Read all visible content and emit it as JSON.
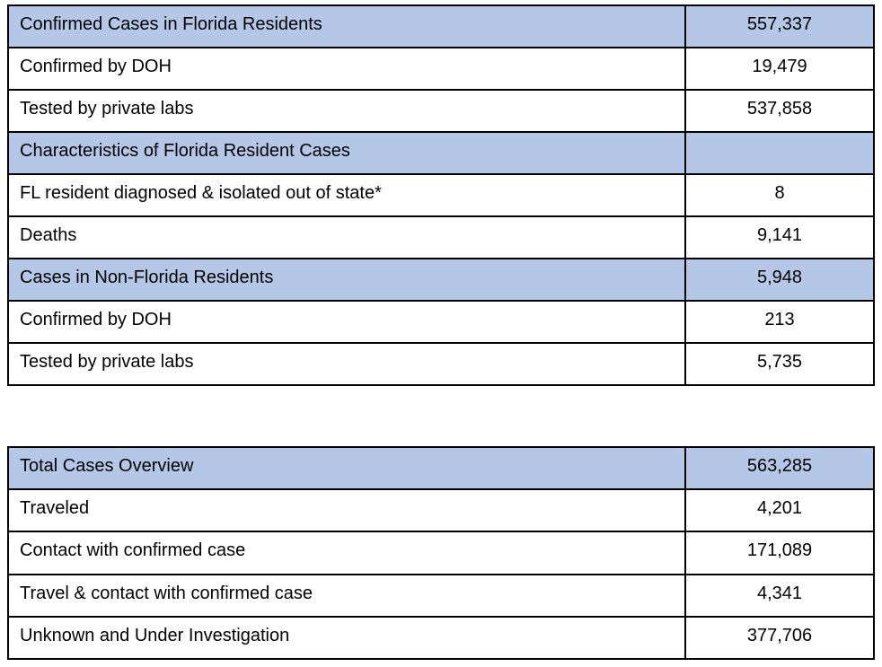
{
  "page": {
    "background_color": "#ffffff",
    "text_color": "#000000",
    "border_color": "#000000",
    "header_fill_color": "#b4c7e7"
  },
  "tables": [
    {
      "name": "florida-resident-cases-summary",
      "rows": [
        {
          "label": "Confirmed Cases in Florida Residents",
          "value": "557,337",
          "header": true
        },
        {
          "label": "Confirmed by DOH",
          "value": "19,479",
          "header": false
        },
        {
          "label": "Tested by private labs",
          "value": "537,858",
          "header": false
        },
        {
          "label": "Characteristics of Florida Resident Cases",
          "value": "",
          "header": true
        },
        {
          "label": "FL resident diagnosed & isolated out of state*",
          "value": "8",
          "header": false
        },
        {
          "label": "Deaths",
          "value": "9,141",
          "header": false
        },
        {
          "label": "Cases in Non-Florida Residents",
          "value": "5,948",
          "header": true
        },
        {
          "label": "Confirmed by DOH",
          "value": "213",
          "header": false
        },
        {
          "label": "Tested by private labs",
          "value": "5,735",
          "header": false
        }
      ]
    },
    {
      "name": "total-cases-overview",
      "rows": [
        {
          "label": "Total Cases Overview",
          "value": "563,285",
          "header": true
        },
        {
          "label": "Traveled",
          "value": "4,201",
          "header": false
        },
        {
          "label": "Contact with confirmed case",
          "value": "171,089",
          "header": false
        },
        {
          "label": "Travel & contact with confirmed case",
          "value": "4,341",
          "header": false
        },
        {
          "label": "Unknown and Under Investigation",
          "value": "377,706",
          "header": false
        }
      ]
    }
  ],
  "chart_data": [
    {
      "type": "table",
      "title": "Confirmed Cases in Florida Residents",
      "categories": [
        "Confirmed Cases in Florida Residents",
        "Confirmed by DOH",
        "Tested by private labs",
        "FL resident diagnosed & isolated out of state*",
        "Deaths",
        "Cases in Non-Florida Residents",
        "Confirmed by DOH (non-resident)",
        "Tested by private labs (non-resident)"
      ],
      "values": [
        557337,
        19479,
        537858,
        8,
        9141,
        5948,
        213,
        5735
      ]
    },
    {
      "type": "table",
      "title": "Total Cases Overview",
      "categories": [
        "Total Cases Overview",
        "Traveled",
        "Contact with confirmed case",
        "Travel & contact with confirmed case",
        "Unknown and Under Investigation"
      ],
      "values": [
        563285,
        4201,
        171089,
        4341,
        377706
      ]
    }
  ]
}
